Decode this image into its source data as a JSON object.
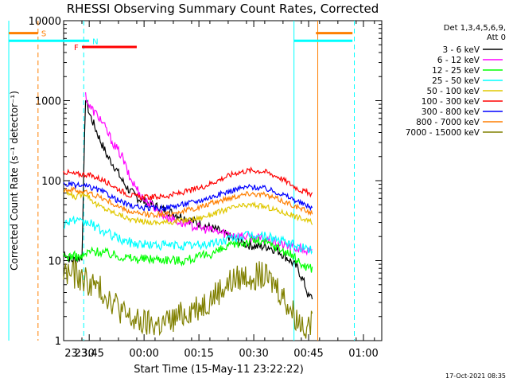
{
  "chart_data": {
    "type": "line",
    "title": "RHESSI Observing Summary Count Rates, Corrected",
    "xlabel": "Start Time (15-May-11 23:22:22)",
    "ylabel": "Corrected Count Rate (s⁻¹ detector⁻¹)",
    "footer": "17-Oct-2021 08:35",
    "yscale": "log",
    "ylim": [
      1,
      10000
    ],
    "x_range_minutes": [
      -22,
      65
    ],
    "ytick_labels": [
      "1",
      "10",
      "100",
      "1000",
      "10000"
    ],
    "ytick_values": [
      1,
      10,
      100,
      1000,
      10000
    ],
    "xtick_labels": [
      "23:30",
      "23:45",
      "00:00",
      "00:15",
      "00:30",
      "00:45",
      "01:00"
    ],
    "xtick_minutes": [
      -30,
      -15,
      0,
      15,
      30,
      45,
      60
    ],
    "legend": {
      "header": [
        "Det 1,3,4,5,6,9,",
        "Att 0"
      ],
      "position": "right"
    },
    "flags": [
      {
        "label": "S",
        "color": "#ff7f00",
        "y": 7000,
        "segments": [
          [
            -37,
            -29
          ],
          [
            47,
            57
          ]
        ]
      },
      {
        "label": "N",
        "color": "#00ffff",
        "y": 5600,
        "segments": [
          [
            -37,
            -15
          ],
          [
            41,
            57
          ]
        ]
      },
      {
        "label": "F",
        "color": "#ff0000",
        "y": 4700,
        "segments": [
          [
            -17,
            -2
          ]
        ]
      }
    ],
    "vlines": [
      {
        "x": -37,
        "color": "#00ffff",
        "style": "solid"
      },
      {
        "x": -29,
        "color": "#ff7f00",
        "style": "dashed"
      },
      {
        "x": -16.5,
        "color": "#00ffff",
        "style": "dashed"
      },
      {
        "x": 41,
        "color": "#00ffff",
        "style": "solid"
      },
      {
        "x": 47.5,
        "color": "#ff7f00",
        "style": "solid"
      },
      {
        "x": 57.5,
        "color": "#00ffff",
        "style": "dashed"
      }
    ],
    "series": [
      {
        "name": "3 - 6 keV",
        "color": "#000000",
        "points": [
          [
            -22,
            13
          ],
          [
            -20,
            10
          ],
          [
            -17,
            11
          ],
          [
            -16,
            1100
          ],
          [
            -15,
            700
          ],
          [
            -12,
            320
          ],
          [
            -10,
            200
          ],
          [
            -8,
            150
          ],
          [
            -6,
            100
          ],
          [
            -4,
            75
          ],
          [
            -2,
            62
          ],
          [
            0,
            55
          ],
          [
            5,
            44
          ],
          [
            10,
            36
          ],
          [
            15,
            29
          ],
          [
            20,
            24
          ],
          [
            25,
            18
          ],
          [
            28,
            16
          ],
          [
            31,
            15
          ],
          [
            34,
            15
          ],
          [
            37,
            13
          ],
          [
            40,
            10
          ],
          [
            42,
            8
          ],
          [
            44,
            5
          ],
          [
            45,
            3.5
          ],
          [
            46,
            3.5
          ]
        ]
      },
      {
        "name": "6 - 12 keV",
        "color": "#ff00ff",
        "points": [
          [
            -16,
            1200
          ],
          [
            -15,
            850
          ],
          [
            -12,
            600
          ],
          [
            -10,
            400
          ],
          [
            -8,
            270
          ],
          [
            -6,
            200
          ],
          [
            -4,
            110
          ],
          [
            -2,
            80
          ],
          [
            0,
            58
          ],
          [
            3,
            46
          ],
          [
            5,
            38
          ],
          [
            10,
            30
          ],
          [
            15,
            26
          ],
          [
            20,
            23
          ],
          [
            25,
            21
          ],
          [
            28,
            20
          ],
          [
            31,
            19
          ],
          [
            34,
            18
          ],
          [
            37,
            16
          ],
          [
            40,
            15
          ],
          [
            43,
            14
          ],
          [
            46,
            12.5
          ]
        ]
      },
      {
        "name": "12 - 25 keV",
        "color": "#00ff00",
        "points": [
          [
            -22,
            11
          ],
          [
            -20,
            11.5
          ],
          [
            -17,
            11
          ],
          [
            -15,
            13
          ],
          [
            -12,
            13
          ],
          [
            -9,
            12
          ],
          [
            -5,
            11
          ],
          [
            -2,
            10.5
          ],
          [
            0,
            10.5
          ],
          [
            5,
            10.5
          ],
          [
            10,
            10
          ],
          [
            15,
            11
          ],
          [
            20,
            13
          ],
          [
            25,
            16
          ],
          [
            30,
            18
          ],
          [
            33,
            17
          ],
          [
            36,
            15
          ],
          [
            40,
            12
          ],
          [
            43,
            9
          ],
          [
            46,
            8
          ]
        ]
      },
      {
        "name": "25 - 50 keV",
        "color": "#00ffff",
        "points": [
          [
            -22,
            28
          ],
          [
            -20,
            33
          ],
          [
            -17,
            29
          ],
          [
            -15,
            30
          ],
          [
            -12,
            24
          ],
          [
            -9,
            21
          ],
          [
            -6,
            18
          ],
          [
            -3,
            16.5
          ],
          [
            0,
            16
          ],
          [
            5,
            15.5
          ],
          [
            10,
            15.5
          ],
          [
            15,
            15.5
          ],
          [
            20,
            17
          ],
          [
            25,
            19.5
          ],
          [
            30,
            21
          ],
          [
            34,
            20
          ],
          [
            37,
            18
          ],
          [
            40,
            16
          ],
          [
            43,
            14.5
          ],
          [
            46,
            13.5
          ]
        ]
      },
      {
        "name": "50 - 100 keV",
        "color": "#e0c800",
        "points": [
          [
            -22,
            75
          ],
          [
            -19,
            62
          ],
          [
            -16,
            70
          ],
          [
            -13,
            50
          ],
          [
            -10,
            43
          ],
          [
            -7,
            38
          ],
          [
            -4,
            33
          ],
          [
            -1,
            31
          ],
          [
            2,
            30
          ],
          [
            6,
            30
          ],
          [
            10,
            31.5
          ],
          [
            15,
            34
          ],
          [
            20,
            40
          ],
          [
            25,
            47
          ],
          [
            30,
            50
          ],
          [
            34,
            46
          ],
          [
            38,
            40
          ],
          [
            42,
            35
          ],
          [
            46,
            30
          ]
        ]
      },
      {
        "name": "100 - 300 keV",
        "color": "#ff0000",
        "points": [
          [
            -22,
            130
          ],
          [
            -19,
            120
          ],
          [
            -16,
            120
          ],
          [
            -13,
            110
          ],
          [
            -10,
            95
          ],
          [
            -7,
            78
          ],
          [
            -4,
            66
          ],
          [
            -1,
            62
          ],
          [
            2,
            62
          ],
          [
            6,
            64
          ],
          [
            10,
            70
          ],
          [
            15,
            80
          ],
          [
            20,
            100
          ],
          [
            25,
            125
          ],
          [
            29,
            135
          ],
          [
            33,
            130
          ],
          [
            37,
            110
          ],
          [
            41,
            85
          ],
          [
            43,
            75
          ],
          [
            46,
            68
          ]
        ]
      },
      {
        "name": "300 - 800 keV",
        "color": "#0000ff",
        "points": [
          [
            -22,
            90
          ],
          [
            -19,
            88
          ],
          [
            -16,
            85
          ],
          [
            -13,
            78
          ],
          [
            -10,
            68
          ],
          [
            -7,
            56
          ],
          [
            -4,
            49
          ],
          [
            -1,
            46
          ],
          [
            2,
            45
          ],
          [
            6,
            46
          ],
          [
            10,
            50
          ],
          [
            15,
            56
          ],
          [
            20,
            66
          ],
          [
            25,
            78
          ],
          [
            29,
            84
          ],
          [
            33,
            80
          ],
          [
            37,
            70
          ],
          [
            41,
            58
          ],
          [
            43,
            52
          ],
          [
            46,
            46
          ]
        ]
      },
      {
        "name": "800 - 7000 keV",
        "color": "#ff7f00",
        "points": [
          [
            -22,
            78
          ],
          [
            -19,
            76
          ],
          [
            -16,
            72
          ],
          [
            -13,
            65
          ],
          [
            -10,
            56
          ],
          [
            -7,
            47
          ],
          [
            -4,
            41
          ],
          [
            -1,
            38
          ],
          [
            2,
            37.5
          ],
          [
            6,
            38
          ],
          [
            10,
            41
          ],
          [
            15,
            46
          ],
          [
            20,
            55
          ],
          [
            25,
            64
          ],
          [
            29,
            70
          ],
          [
            33,
            66
          ],
          [
            37,
            58
          ],
          [
            41,
            49
          ],
          [
            43,
            44
          ],
          [
            46,
            40
          ]
        ]
      },
      {
        "name": "7000 - 15000 keV",
        "color": "#808000",
        "points": [
          [
            -22,
            7
          ],
          [
            -20,
            7
          ],
          [
            -17,
            6
          ],
          [
            -14,
            5
          ],
          [
            -11,
            4
          ],
          [
            -8,
            3
          ],
          [
            -5,
            2
          ],
          [
            -2,
            1.7
          ],
          [
            1,
            1.6
          ],
          [
            5,
            1.6
          ],
          [
            9,
            1.9
          ],
          [
            13,
            2.5
          ],
          [
            17,
            3
          ],
          [
            20,
            4
          ],
          [
            24,
            5.5
          ],
          [
            28,
            6.5
          ],
          [
            32,
            6.5
          ],
          [
            36,
            5
          ],
          [
            39,
            3
          ],
          [
            42,
            1.8
          ],
          [
            44,
            1.6
          ],
          [
            46,
            1.6
          ]
        ]
      }
    ]
  }
}
